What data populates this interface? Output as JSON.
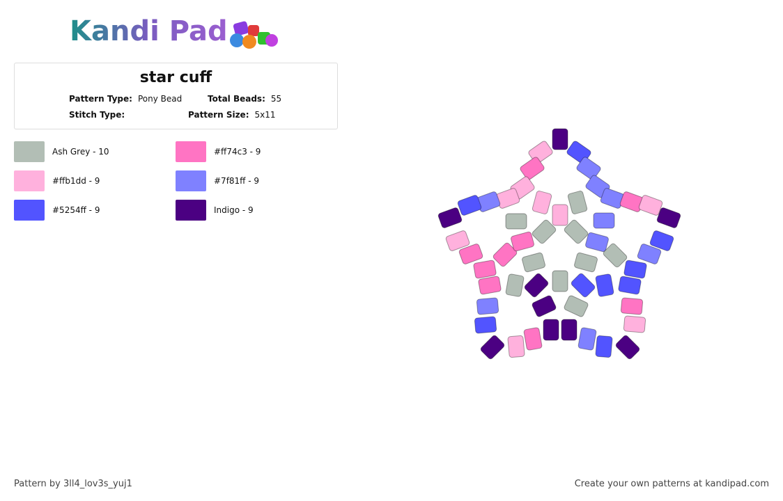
{
  "header": {
    "logo": "Kandi Pad"
  },
  "info": {
    "title": "star cuff",
    "fields": [
      {
        "label": "Pattern Type:",
        "value": "Pony Bead"
      },
      {
        "label": "Total Beads:",
        "value": "55"
      },
      {
        "label": "Stitch Type:",
        "value": ""
      },
      {
        "label": "Pattern Size:",
        "value": "5x11"
      }
    ]
  },
  "legend": [
    {
      "label": "Ash Grey - 10",
      "color": "#b2beb5"
    },
    {
      "label": "#ff74c3 - 9",
      "color": "#ff74c3"
    },
    {
      "label": "#ffb1dd - 9",
      "color": "#ffb1dd"
    },
    {
      "label": "#7f81ff - 9",
      "color": "#7f81ff"
    },
    {
      "label": "#5254ff - 9",
      "color": "#5254ff"
    },
    {
      "label": "Indigo - 9",
      "color": "#4b0082"
    }
  ],
  "footer": {
    "left": "Pattern by 3ll4_lov3s_yuj1",
    "right": "Create your own patterns at kandipad.com"
  }
}
